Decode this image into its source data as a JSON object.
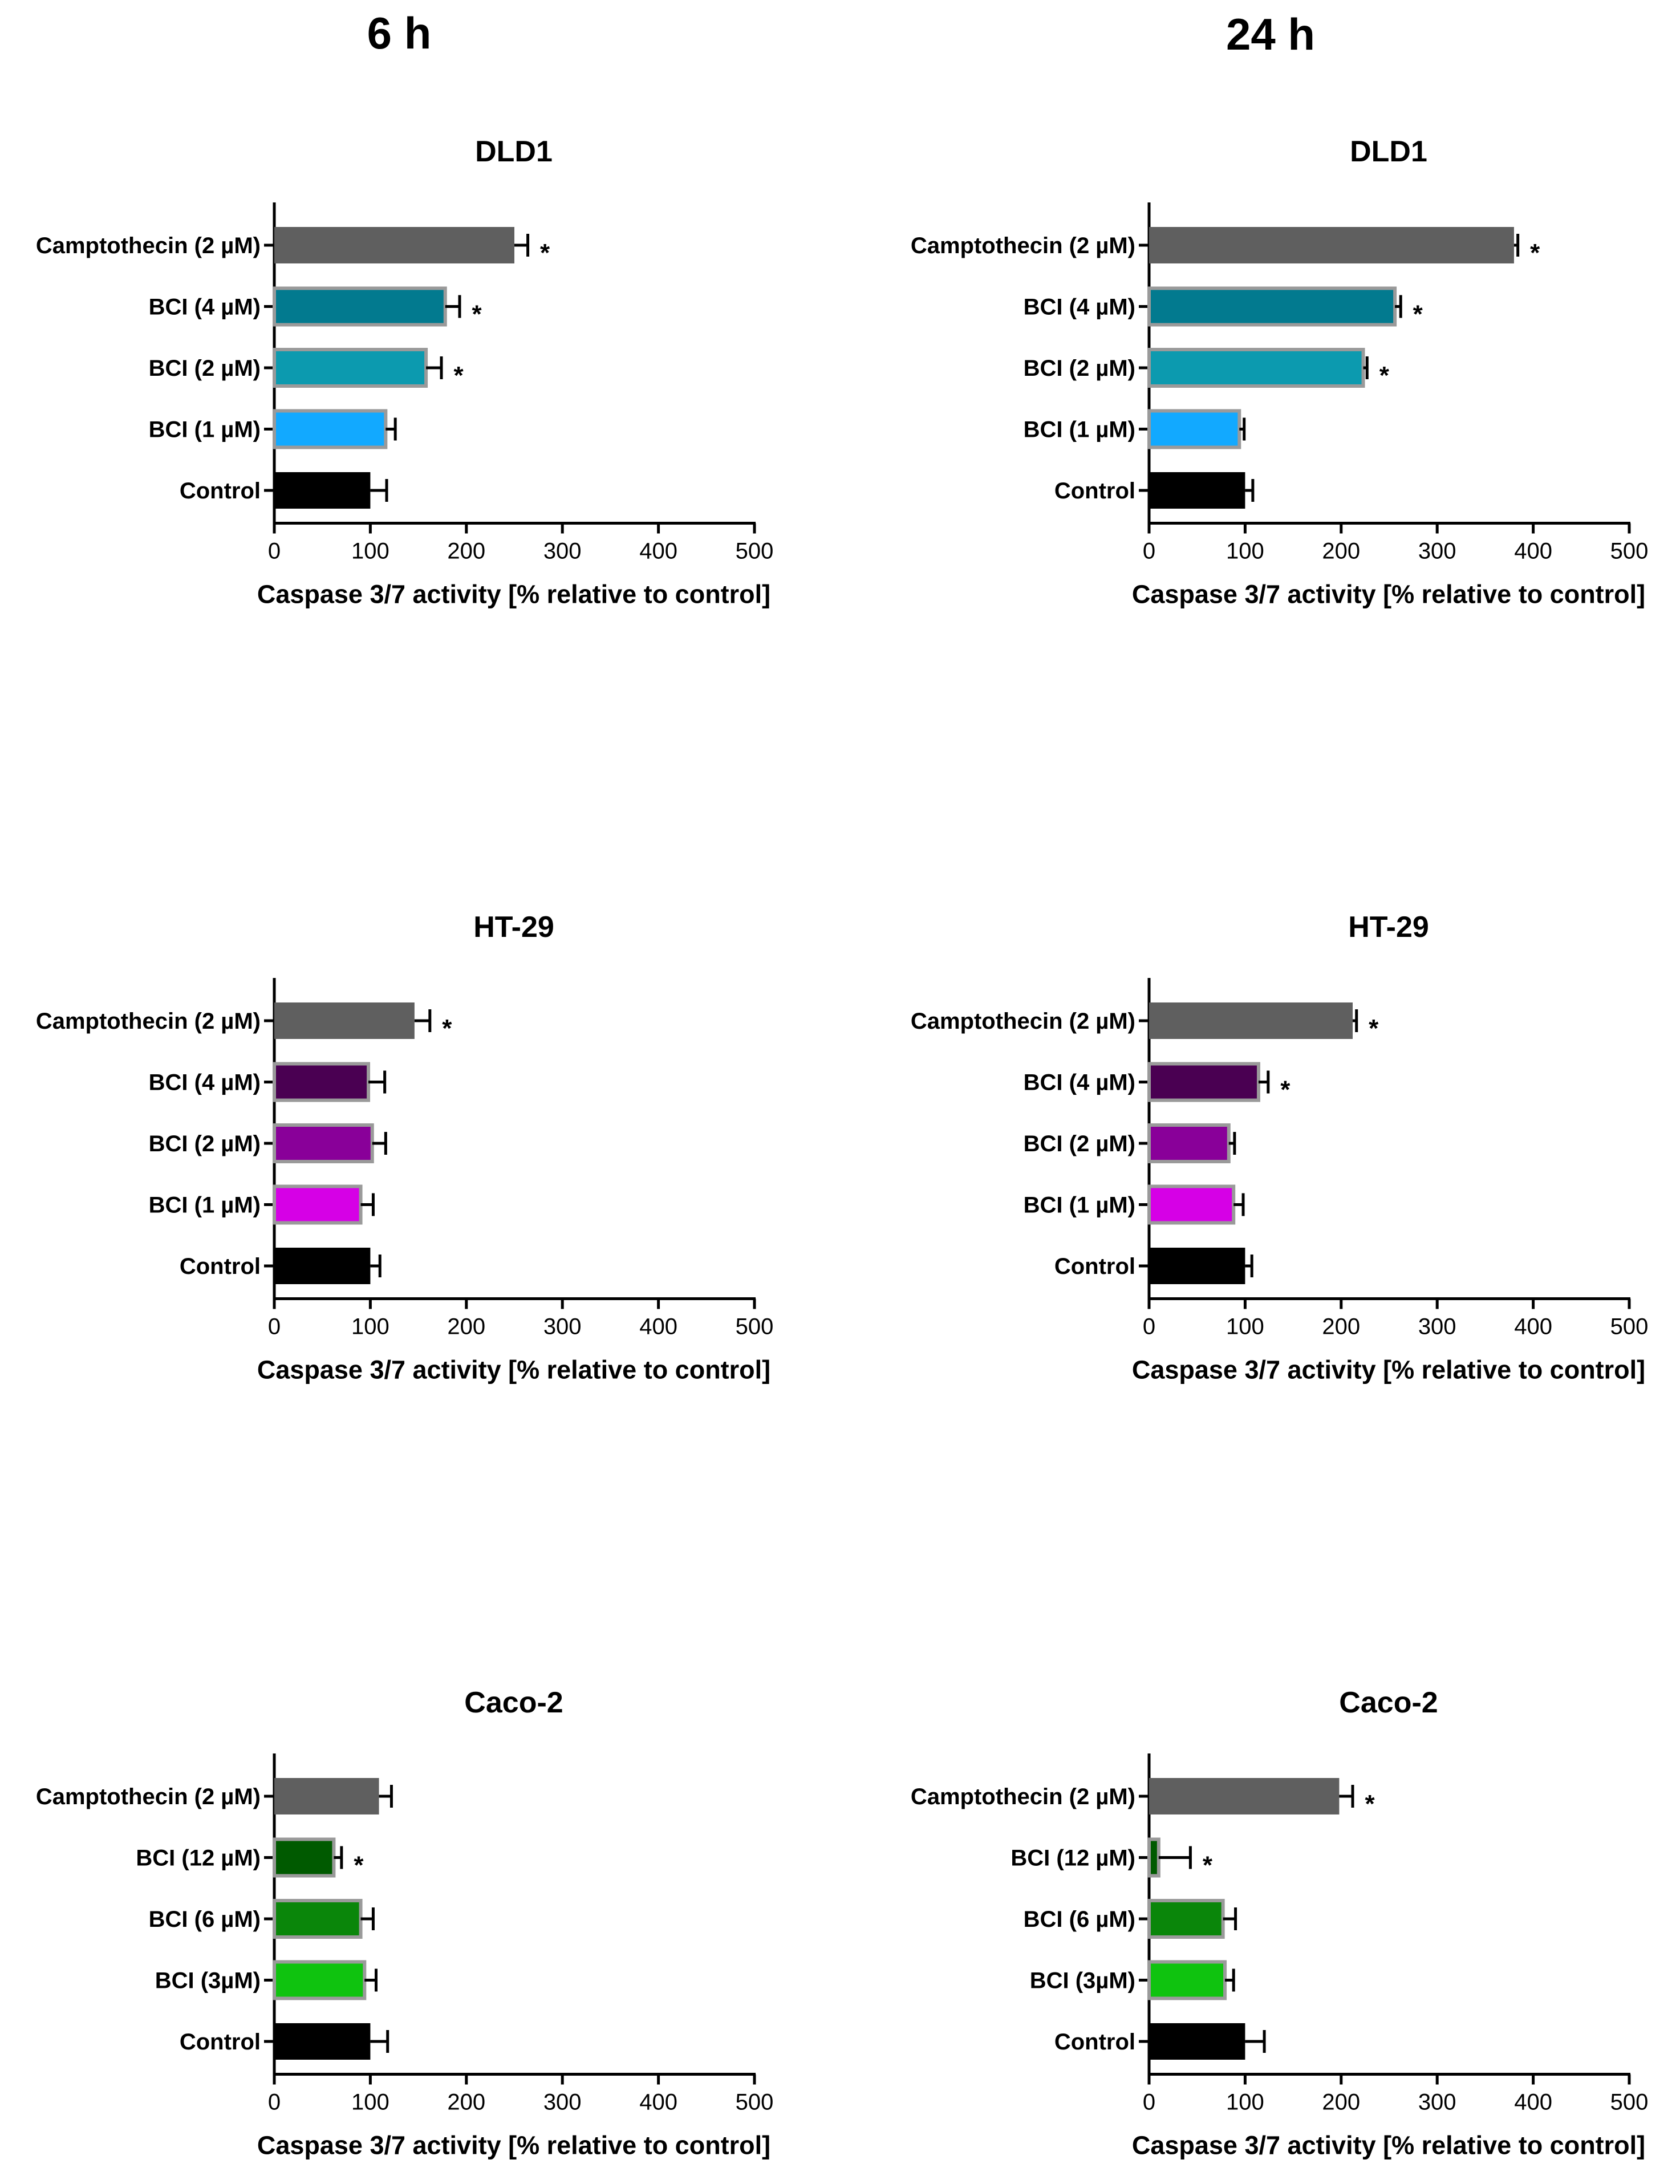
{
  "columns": [
    "6 h",
    "24 h"
  ],
  "chart_data": [
    {
      "type": "bar",
      "orientation": "horizontal",
      "timepoint": "6 h",
      "title": "DLD1",
      "categories": [
        "Camptothecin (2 µM)",
        "BCI (4 µM)",
        "BCI (2 µM)",
        "BCI (1 µM)",
        "Control"
      ],
      "values": [
        250,
        178,
        158,
        116,
        100
      ],
      "errors": [
        14,
        15,
        16,
        10,
        17
      ],
      "significant": [
        true,
        true,
        true,
        false,
        false
      ],
      "colors": [
        "#5f5f5f",
        "#027a8f",
        "#0c9aaf",
        "#12a9ff",
        "#000000"
      ],
      "xlabel": "Caspase 3/7 activity [% relative to control]",
      "xticks": [
        0,
        100,
        200,
        300,
        400,
        500
      ],
      "xlim": [
        0,
        500
      ]
    },
    {
      "type": "bar",
      "orientation": "horizontal",
      "timepoint": "24 h",
      "title": "DLD1",
      "categories": [
        "Camptothecin (2 µM)",
        "BCI (4 µM)",
        "BCI (2 µM)",
        "BCI (1 µM)",
        "Control"
      ],
      "values": [
        380,
        256,
        223,
        94,
        100
      ],
      "errors": [
        4,
        6,
        4,
        5,
        8
      ],
      "significant": [
        true,
        true,
        true,
        false,
        false
      ],
      "colors": [
        "#5f5f5f",
        "#027a8f",
        "#0c9aaf",
        "#12a9ff",
        "#000000"
      ],
      "xlabel": "Caspase 3/7 activity [% relative to control]",
      "xticks": [
        0,
        100,
        200,
        300,
        400,
        500
      ],
      "xlim": [
        0,
        500
      ]
    },
    {
      "type": "bar",
      "orientation": "horizontal",
      "timepoint": "6 h",
      "title": "HT-29",
      "categories": [
        "Camptothecin (2 µM)",
        "BCI (4 µM)",
        "BCI (2 µM)",
        "BCI (1 µM)",
        "Control"
      ],
      "values": [
        146,
        98,
        102,
        90,
        100
      ],
      "errors": [
        16,
        17,
        14,
        13,
        10
      ],
      "significant": [
        true,
        false,
        false,
        false,
        false
      ],
      "colors": [
        "#5f5f5f",
        "#4a0052",
        "#890099",
        "#d600e6",
        "#000000"
      ],
      "xlabel": "Caspase 3/7 activity [% relative to control]",
      "xticks": [
        0,
        100,
        200,
        300,
        400,
        500
      ],
      "xlim": [
        0,
        500
      ]
    },
    {
      "type": "bar",
      "orientation": "horizontal",
      "timepoint": "24 h",
      "title": "HT-29",
      "categories": [
        "Camptothecin (2 µM)",
        "BCI (4 µM)",
        "BCI (2 µM)",
        "BCI (1 µM)",
        "Control"
      ],
      "values": [
        212,
        114,
        83,
        88,
        100
      ],
      "errors": [
        4,
        10,
        6,
        10,
        7
      ],
      "significant": [
        true,
        true,
        false,
        false,
        false
      ],
      "colors": [
        "#5f5f5f",
        "#4a0052",
        "#890099",
        "#d600e6",
        "#000000"
      ],
      "xlabel": "Caspase 3/7 activity [% relative to control]",
      "xticks": [
        0,
        100,
        200,
        300,
        400,
        500
      ],
      "xlim": [
        0,
        500
      ]
    },
    {
      "type": "bar",
      "orientation": "horizontal",
      "timepoint": "6 h",
      "title": "Caco-2",
      "categories": [
        "Camptothecin (2 µM)",
        "BCI (12 µM)",
        "BCI (6 µM)",
        "BCI (3µM)",
        "Control"
      ],
      "values": [
        109,
        62,
        90,
        94,
        100
      ],
      "errors": [
        13,
        8,
        13,
        12,
        18
      ],
      "significant": [
        false,
        true,
        false,
        false,
        false
      ],
      "colors": [
        "#5f5f5f",
        "#005a00",
        "#0a860a",
        "#0fc30f",
        "#000000"
      ],
      "xlabel": "Caspase 3/7 activity [% relative to control]",
      "xticks": [
        0,
        100,
        200,
        300,
        400,
        500
      ],
      "xlim": [
        0,
        500
      ]
    },
    {
      "type": "bar",
      "orientation": "horizontal",
      "timepoint": "24 h",
      "title": "Caco-2",
      "categories": [
        "Camptothecin (2 µM)",
        "BCI (12 µM)",
        "BCI (6 µM)",
        "BCI (3µM)",
        "Control"
      ],
      "values": [
        198,
        10,
        77,
        79,
        100
      ],
      "errors": [
        14,
        33,
        13,
        9,
        20
      ],
      "significant": [
        true,
        true,
        false,
        false,
        false
      ],
      "colors": [
        "#5f5f5f",
        "#005a00",
        "#0a860a",
        "#0fc30f",
        "#000000"
      ],
      "xlabel": "Caspase 3/7 activity [% relative to control]",
      "xticks": [
        0,
        100,
        200,
        300,
        400,
        500
      ],
      "xlim": [
        0,
        500
      ]
    }
  ]
}
